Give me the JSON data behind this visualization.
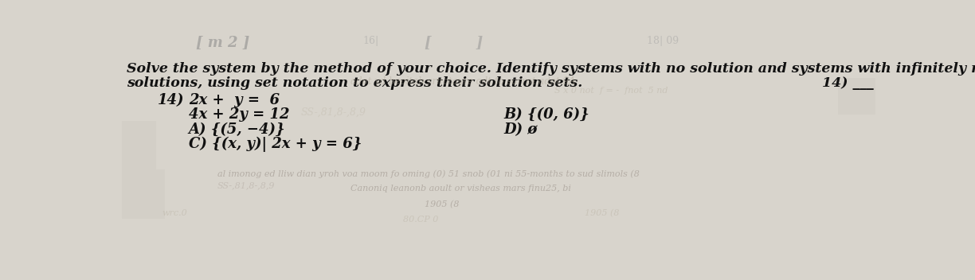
{
  "background_color": "#d8d4cc",
  "title_line1": "Solve the system by the method of your choice. Identify systems with no solution and systems with infinitely many",
  "title_line2": "solutions, using set notation to express their solution sets.",
  "question_number_side": "14) ___",
  "problem_label": "14)",
  "eq1": "2x +  y =  6",
  "eq2": "4x + 2y = 12",
  "optA": "A) {(5, −4)}",
  "optB": "B) {(0, 6)}",
  "optC": "C) {(x, y)| 2x + y = 6}",
  "optD": "D) ø",
  "title_fontsize": 12.5,
  "body_fontsize": 13,
  "text_color": "#111111",
  "faded_top_left": "[ m 2 ]",
  "faded_top_center": "[         ]",
  "faded_bottom1": "al imonog ed lliw dian yroh voa moom fo oming (0) 51 snob (01 ni 55-months to sud slimols (8",
  "faded_bottom2": "Canoniq leanonb aoult or visheas mars finu25, bi",
  "faded_bottom3": "1905 (8"
}
